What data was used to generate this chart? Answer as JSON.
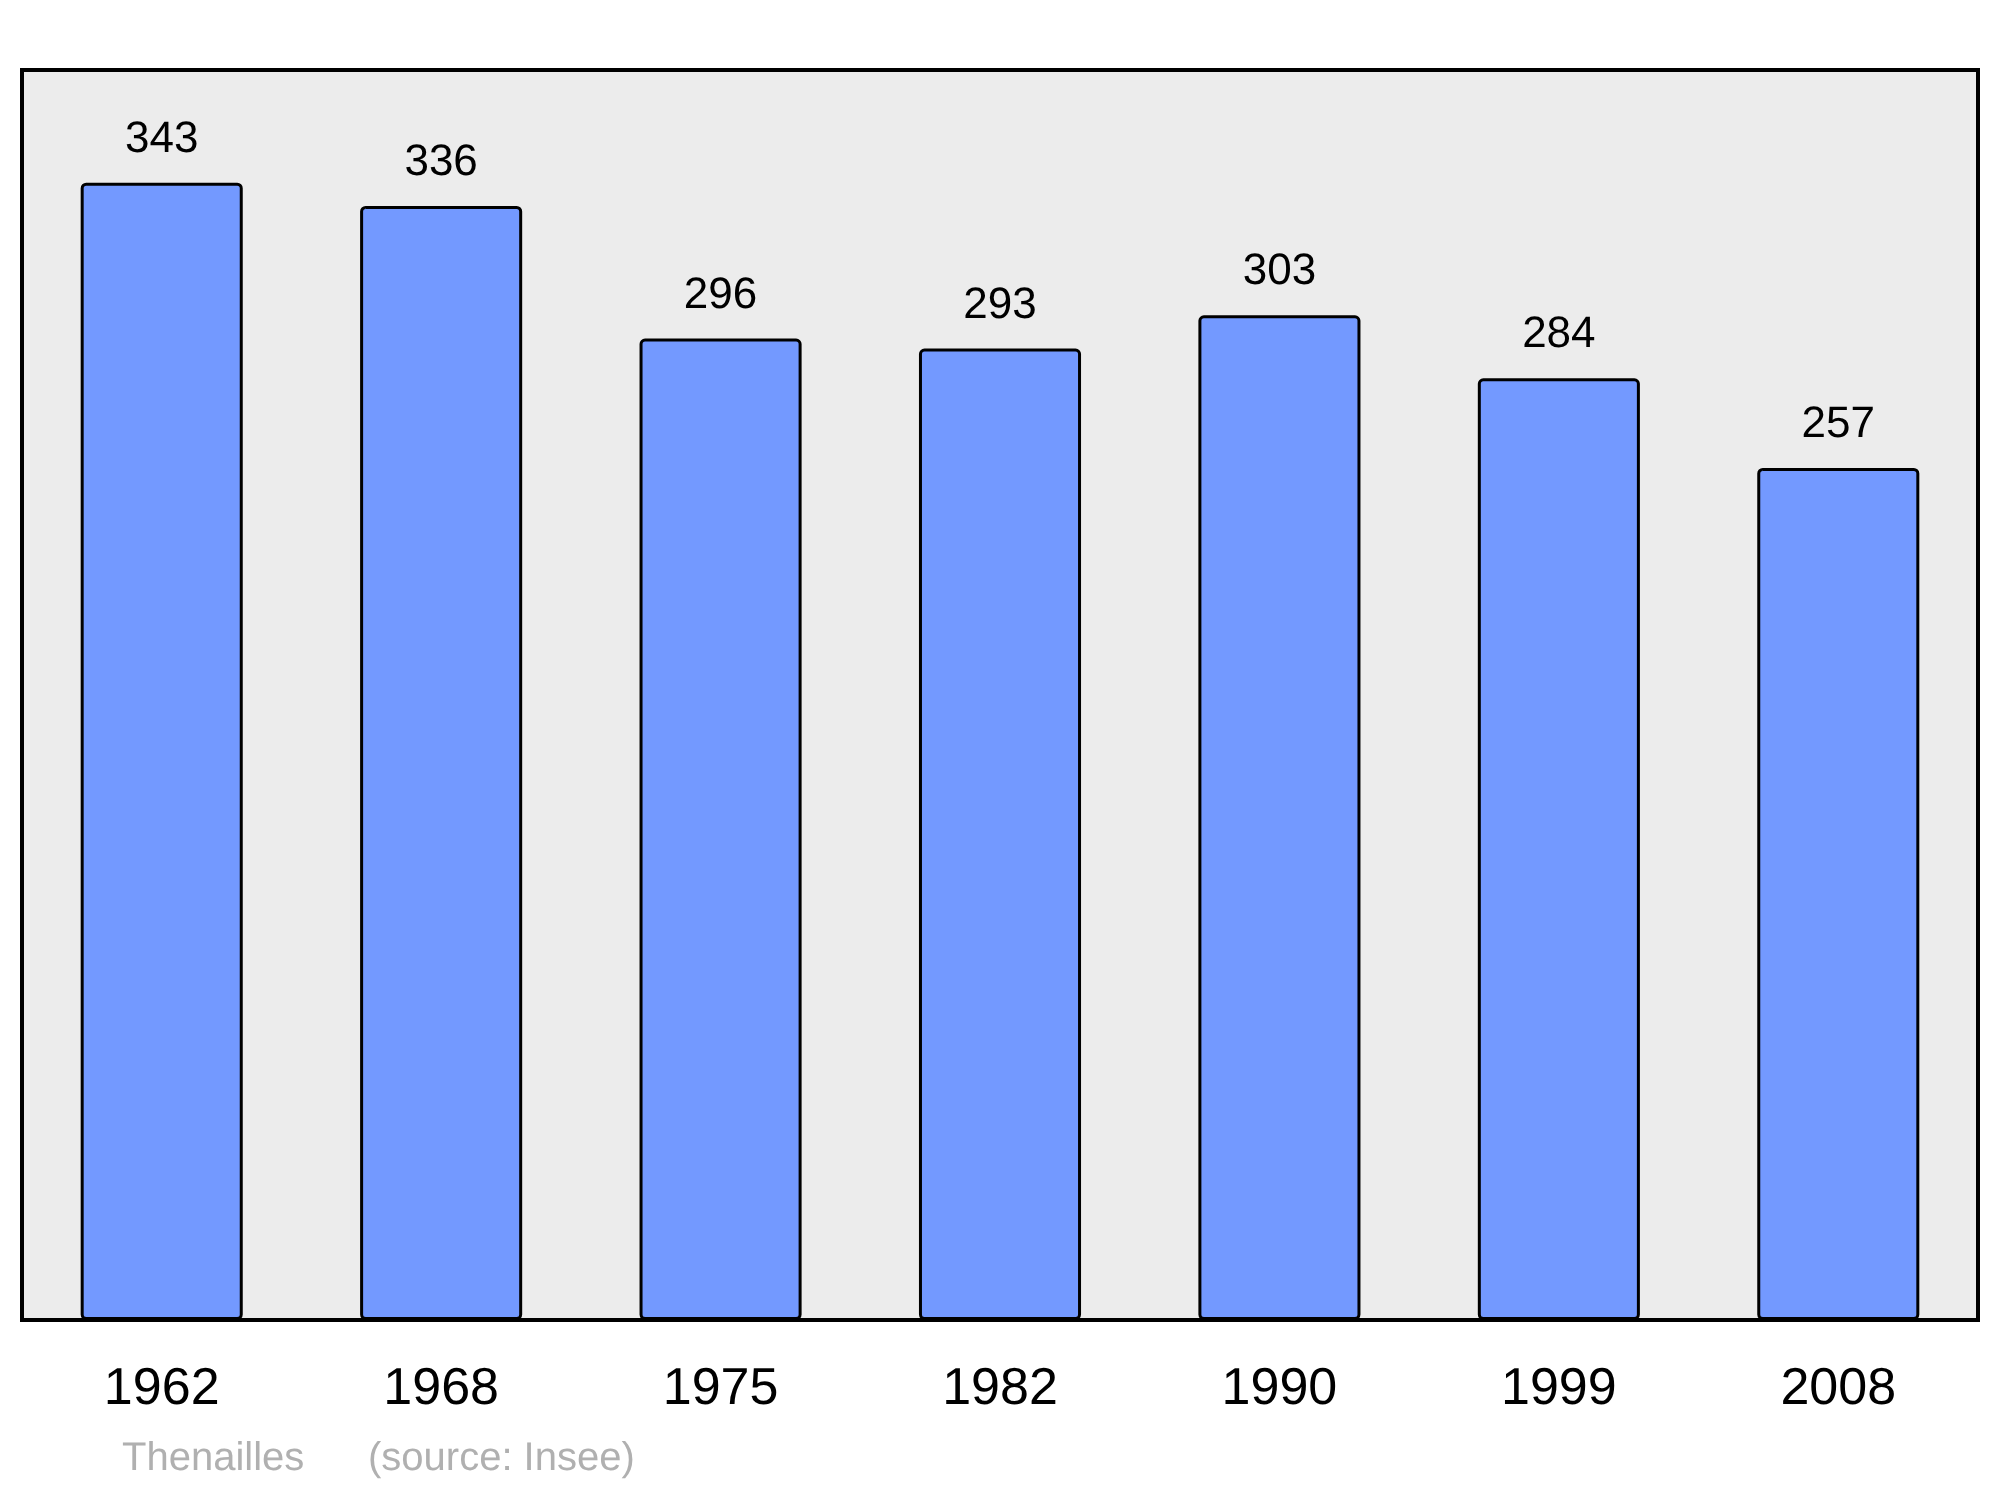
{
  "chart_data": {
    "type": "bar",
    "categories": [
      "1962",
      "1968",
      "1975",
      "1982",
      "1990",
      "1999",
      "2008"
    ],
    "values": [
      343,
      336,
      296,
      293,
      303,
      284,
      257
    ],
    "color": "#7399ff",
    "ylim": [
      0,
      377
    ],
    "tick_labels": "x",
    "data_labels": true,
    "annotations": [
      "Thenailles",
      "(source: Insee)"
    ]
  }
}
